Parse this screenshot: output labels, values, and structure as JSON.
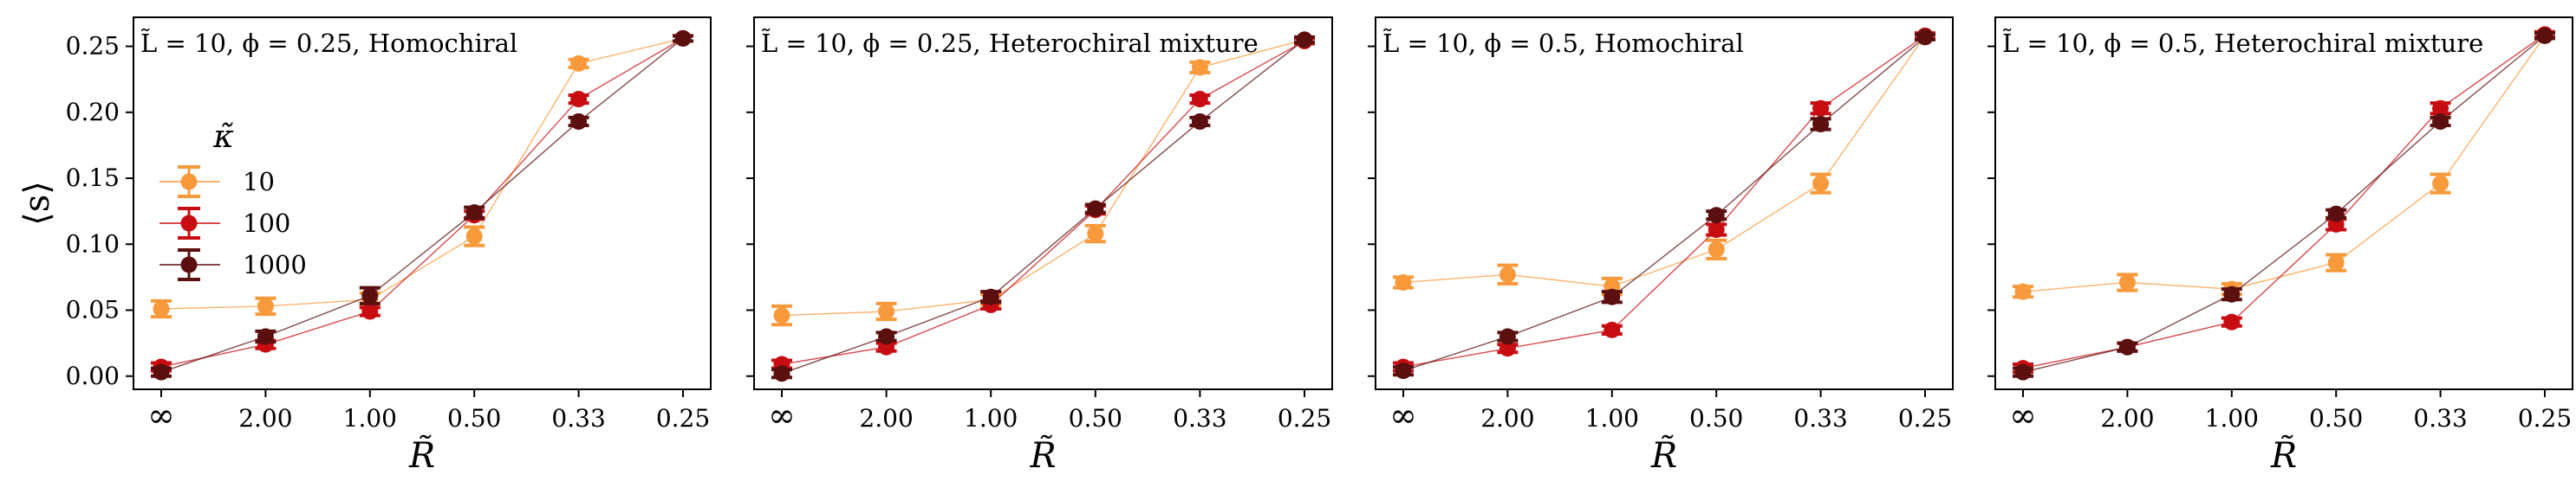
{
  "chart_data": [
    {
      "type": "line",
      "title": "L̃ = 10, ϕ = 0.25, Homochiral",
      "xlabel": "R̃",
      "ylabel": "⟨s⟩",
      "categories": [
        "∞",
        "2.00",
        "1.00",
        "0.50",
        "0.33",
        "0.25"
      ],
      "ylim": [
        -0.01,
        0.272
      ],
      "yticks": [
        "0.00",
        "0.05",
        "0.10",
        "0.15",
        "0.20",
        "0.25"
      ],
      "series": [
        {
          "name": "10",
          "values": [
            0.051,
            0.053,
            0.058,
            0.106,
            0.237,
            0.256
          ],
          "errors": [
            0.006,
            0.006,
            0.005,
            0.007,
            0.003,
            0.002
          ]
        },
        {
          "name": "100",
          "values": [
            0.007,
            0.024,
            0.049,
            0.122,
            0.21,
            0.256
          ],
          "errors": [
            0.003,
            0.003,
            0.003,
            0.003,
            0.003,
            0.002
          ]
        },
        {
          "name": "1000",
          "values": [
            0.003,
            0.03,
            0.061,
            0.124,
            0.193,
            0.256
          ],
          "errors": [
            0.003,
            0.004,
            0.006,
            0.004,
            0.003,
            0.002
          ]
        }
      ]
    },
    {
      "type": "line",
      "title": "L̃ = 10, ϕ = 0.25, Heterochiral mixture",
      "xlabel": "R̃",
      "ylabel": "",
      "categories": [
        "∞",
        "2.00",
        "1.00",
        "0.50",
        "0.33",
        "0.25"
      ],
      "ylim": [
        -0.01,
        0.272
      ],
      "series": [
        {
          "name": "10",
          "values": [
            0.046,
            0.049,
            0.058,
            0.108,
            0.234,
            0.255
          ],
          "errors": [
            0.007,
            0.006,
            0.004,
            0.006,
            0.004,
            0.002
          ]
        },
        {
          "name": "100",
          "values": [
            0.009,
            0.022,
            0.054,
            0.126,
            0.21,
            0.254
          ],
          "errors": [
            0.003,
            0.003,
            0.003,
            0.003,
            0.003,
            0.002
          ]
        },
        {
          "name": "1000",
          "values": [
            0.002,
            0.03,
            0.06,
            0.127,
            0.193,
            0.255
          ],
          "errors": [
            0.003,
            0.003,
            0.004,
            0.003,
            0.003,
            0.002
          ]
        }
      ]
    },
    {
      "type": "line",
      "title": "L̃ = 10, ϕ = 0.5, Homochiral",
      "xlabel": "R̃",
      "ylabel": "",
      "categories": [
        "∞",
        "2.00",
        "1.00",
        "0.50",
        "0.33",
        "0.25"
      ],
      "ylim": [
        -0.01,
        0.272
      ],
      "series": [
        {
          "name": "10",
          "values": [
            0.071,
            0.077,
            0.068,
            0.096,
            0.146,
            0.258
          ],
          "errors": [
            0.004,
            0.007,
            0.006,
            0.007,
            0.007,
            0.002
          ]
        },
        {
          "name": "100",
          "values": [
            0.007,
            0.021,
            0.035,
            0.111,
            0.203,
            0.258
          ],
          "errors": [
            0.003,
            0.003,
            0.003,
            0.004,
            0.004,
            0.002
          ]
        },
        {
          "name": "1000",
          "values": [
            0.004,
            0.03,
            0.06,
            0.122,
            0.191,
            0.257
          ],
          "errors": [
            0.003,
            0.003,
            0.004,
            0.003,
            0.004,
            0.002
          ]
        }
      ]
    },
    {
      "type": "line",
      "title": "L̃ = 10, ϕ = 0.5, Heterochiral mixture",
      "xlabel": "R̃",
      "ylabel": "",
      "categories": [
        "∞",
        "2.00",
        "1.00",
        "0.50",
        "0.33",
        "0.25"
      ],
      "ylim": [
        -0.01,
        0.272
      ],
      "series": [
        {
          "name": "10",
          "values": [
            0.064,
            0.071,
            0.066,
            0.086,
            0.146,
            0.258
          ],
          "errors": [
            0.004,
            0.006,
            0.004,
            0.006,
            0.007,
            0.002
          ]
        },
        {
          "name": "100",
          "values": [
            0.006,
            0.022,
            0.041,
            0.115,
            0.203,
            0.259
          ],
          "errors": [
            0.003,
            0.003,
            0.003,
            0.004,
            0.004,
            0.002
          ]
        },
        {
          "name": "1000",
          "values": [
            0.003,
            0.022,
            0.062,
            0.123,
            0.193,
            0.258
          ],
          "errors": [
            0.003,
            0.003,
            0.004,
            0.003,
            0.003,
            0.002
          ]
        }
      ]
    }
  ],
  "legend": {
    "title": "κ̃",
    "entries": [
      "10",
      "100",
      "1000"
    ],
    "placement": "left, inside first panel"
  },
  "colors": {
    "series_10": "#f89a3c",
    "series_100": "#c80d12",
    "series_1000": "#5b0f0f"
  }
}
